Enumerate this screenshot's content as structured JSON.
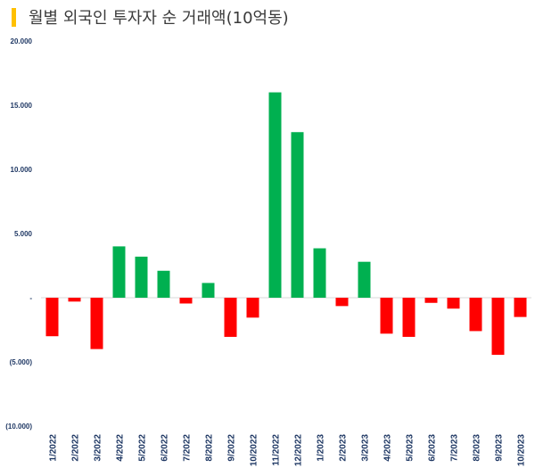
{
  "title": "월별 외국인 투자자 순 거래액(10억동)",
  "colors": {
    "positive": "#00B050",
    "negative": "#FF0000",
    "title_accent": "#FFC000",
    "tick_text": "#1f3864"
  },
  "chart_data": {
    "type": "bar",
    "title": "월별 외국인 투자자 순 거래액(10억동)",
    "xlabel": "",
    "ylabel": "",
    "ylim": [
      -10000,
      20000
    ],
    "yticks": [
      {
        "value": 20000,
        "label": "20.000"
      },
      {
        "value": 15000,
        "label": "15.000"
      },
      {
        "value": 10000,
        "label": "10.000"
      },
      {
        "value": 5000,
        "label": "5.000"
      },
      {
        "value": 0,
        "label": "-"
      },
      {
        "value": -5000,
        "label": "(5.000)"
      },
      {
        "value": -10000,
        "label": "(10.000)"
      }
    ],
    "grid": false,
    "legend": "none",
    "categories": [
      "1/2022",
      "2/2022",
      "3/2022",
      "4/2022",
      "5/2022",
      "6/2022",
      "7/2022",
      "8/2022",
      "9/2022",
      "10/2022",
      "11/2022",
      "12/2022",
      "1/2023",
      "2/2023",
      "3/2023",
      "4/2023",
      "5/2023",
      "6/2023",
      "7/2023",
      "8/2023",
      "9/2023",
      "10/2023"
    ],
    "values": [
      -3000,
      -300,
      -4000,
      4000,
      3200,
      2100,
      -450,
      1150,
      -3050,
      -1550,
      16000,
      12900,
      3850,
      -650,
      2800,
      -2800,
      -3050,
      -400,
      -850,
      -2600,
      -4450,
      -1500
    ]
  }
}
